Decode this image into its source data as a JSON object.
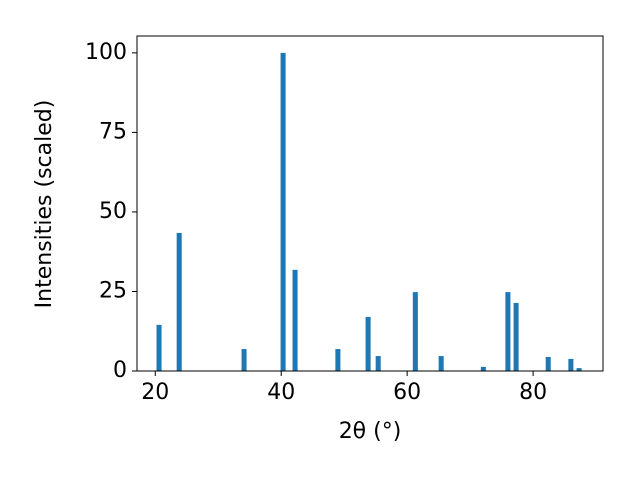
{
  "chart_data": {
    "type": "bar",
    "x_label": "2θ (°)",
    "y_label": "Intensities (scaled)",
    "x": [
      20.6,
      23.8,
      34.1,
      40.3,
      42.2,
      49.0,
      53.8,
      55.4,
      61.3,
      65.4,
      72.1,
      76.0,
      77.3,
      82.4,
      86.0,
      87.3
    ],
    "values": [
      14.5,
      43.4,
      6.9,
      100,
      31.8,
      6.9,
      17,
      4.7,
      24.8,
      4.7,
      1.3,
      24.8,
      21.4,
      4.4,
      3.8,
      0.9
    ],
    "color": "#1f77b4",
    "xlim": [
      17.1,
      91.1
    ],
    "xticks": [
      20,
      40,
      60,
      80
    ],
    "ylim": [
      0,
      105.3
    ],
    "yticks": [
      0,
      25,
      50,
      75,
      100
    ],
    "grid": false
  }
}
